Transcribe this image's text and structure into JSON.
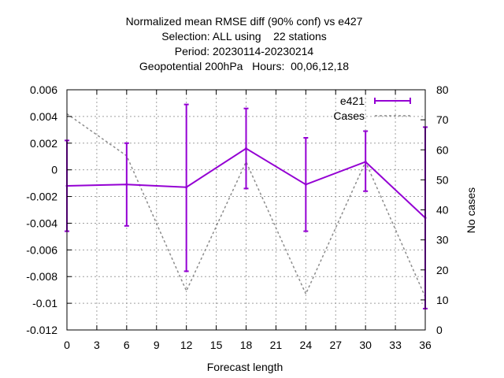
{
  "chart_data": {
    "type": "line",
    "title_lines": [
      "Normalized mean RMSE diff (90% conf) vs e427",
      "Selection: ALL using    22 stations",
      "Period: 20230114-20230214",
      "Geopotential 200hPa   Hours:  00,06,12,18"
    ],
    "xlabel": "Forecast length",
    "ylabel": "",
    "y2label": "No cases",
    "xlim": [
      0,
      36
    ],
    "ylim": [
      -0.012,
      0.006
    ],
    "y2lim": [
      0,
      80
    ],
    "x_ticks": [
      "0",
      "3",
      "6",
      "9",
      "12",
      "15",
      "18",
      "21",
      "24",
      "27",
      "30",
      "33",
      "36"
    ],
    "y_ticks": [
      "0.006",
      "0.004",
      "0.002",
      "0",
      "-0.002",
      "-0.004",
      "-0.006",
      "-0.008",
      "-0.01",
      "-0.012"
    ],
    "y2_ticks": [
      "80",
      "70",
      "60",
      "50",
      "40",
      "30",
      "20",
      "10",
      "0"
    ],
    "grid": true,
    "legend_position": "top-right",
    "series": [
      {
        "name": "e421",
        "color": "#9400d3",
        "axis": "y",
        "x": [
          0,
          6,
          12,
          18,
          24,
          30,
          36
        ],
        "y": [
          -0.0012,
          -0.0011,
          -0.0013,
          0.0016,
          -0.0011,
          0.0006,
          -0.0036
        ],
        "err_low": [
          -0.0046,
          -0.0042,
          -0.0076,
          -0.0014,
          -0.0046,
          -0.0016,
          -0.0104
        ],
        "err_high": [
          0.0022,
          0.002,
          0.0049,
          0.0046,
          0.0024,
          0.0029,
          0.0032
        ]
      },
      {
        "name": "Cases",
        "color": "#8c8c8c",
        "axis": "y2",
        "x": [
          0,
          6,
          12,
          18,
          24,
          30,
          36
        ],
        "y": [
          72,
          58,
          13,
          56,
          12,
          56,
          11
        ]
      }
    ]
  }
}
